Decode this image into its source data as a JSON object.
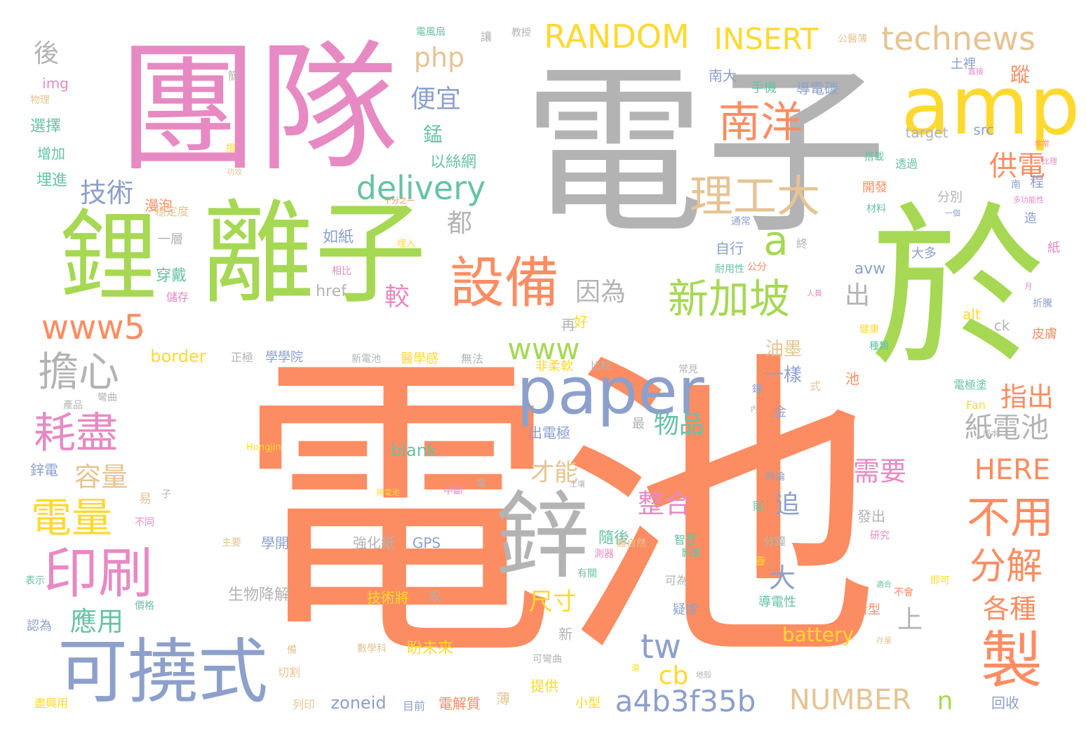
{
  "palette": {
    "background": "#ffffff",
    "orange": "#fc8d62",
    "green": "#a6d854",
    "pink": "#e78ac3",
    "blue": "#8da0cb",
    "yellow": "#ffd92f",
    "tan": "#e5c494",
    "gray": "#b3b3b3",
    "teal": "#66c2a5"
  },
  "words": {
    "w_dianchi": "電池",
    "w_dianzi": "電子",
    "w_tuandui": "團隊",
    "w_yu": "於",
    "w_lizi": "離子",
    "w_li": "鋰",
    "w_amp": "amp",
    "w_paper": "paper",
    "w_xin": "鋅",
    "w_kenaoshi": "可撓式",
    "w_shebei": "設備",
    "w_yinshua": "印刷",
    "w_zhi": "製",
    "w_xinjiapo": "新加坡",
    "w_nanyang": "南洋",
    "w_ligongda": "理工大",
    "w_www5": "www5",
    "w_haojin": "耗盡",
    "w_danxin": "擔心",
    "w_dianliang": "電量",
    "w_buyong": "不用",
    "w_fenjie": "分解",
    "w_technews": "technews",
    "w_random": "RANDOM",
    "w_insert": "INSERT",
    "w_delivery": "delivery",
    "w_www": "www",
    "w_a": "a",
    "w_a4b": "a4b3f35b",
    "w_number": "NUMBER",
    "w_tw": "tw",
    "w_here": "HERE",
    "w_zhidianchi": "紙電池",
    "w_gongdian": "供電",
    "w_jishu": "技術",
    "w_piany": "便宜",
    "w_php": "php",
    "w_rongliang": "容量",
    "w_yingyong": "應用",
    "w_zhenghe": "整合",
    "w_wupin": "物品",
    "w_zhichu": "指出",
    "w_xuyao": "需要",
    "w_gezhong": "各種",
    "w_yinwei": "因為",
    "w_hou": "後",
    "w_jiao": "較",
    "w_dou": "都",
    "w_chu": "出",
    "w_zhui": "追",
    "w_da": "大",
    "w_shang": "上",
    "w_cb": "cb",
    "w_n": "n",
    "w_chicun": "尺寸",
    "w_caineng": "才能",
    "w_battery": "battery",
    "w_zong": "蹤",
    "w_meng": "錳",
    "w_youmo": "油墨",
    "w_yiyang": "一樣",
    "w_blank": "blank",
    "w_zoneid": "zoneid",
    "w_border": "border",
    "w_href": "href",
    "w_avw": "avw",
    "w_target": "target",
    "w_src": "src",
    "w_img": "img",
    "w_alt": "alt",
    "w_ck": "ck",
    "w_gps": "GPS",
    "w_fan": "Fan",
    "w_hongjin": "Hongjin",
    "w_yisiwang": "以絲網",
    "w_rujhi": "如紙",
    "w_chuandai": "穿戴",
    "w_manpao": "漫泡",
    "w_wendingdu": "穩定度",
    "w_yiceng": "一層",
    "w_chucun": "儲存",
    "w_xuanze": "選擇",
    "w_zengjia": "增加",
    "w_maijin": "埋進",
    "w_wuli": "物理",
    "w_zhao": "摺",
    "w_gongxiao": "功效",
    "w_shifen": "十分之一",
    "w_mairu": "埋入",
    "w_xiangbi": "相比",
    "w_zai": "再",
    "w_hao": "好",
    "w_suihou": "隨後",
    "w_shuchu": "出電極",
    "w_zui": "最",
    "w_qianghua": "強化紙",
    "w_shengwu": "生物降解",
    "w_jishujiang": "技術將",
    "w_she": "設",
    "w_panweilai": "盼未來",
    "w_shuxueke": "數學科",
    "w_tigong": "提供",
    "w_xiaoxing": "小型",
    "w_dianjiezhi": "電解質",
    "w_bao": "薄",
    "w_mumian": "目前",
    "w_lieyin": "列印",
    "w_qiege": "切割",
    "w_bei": "備",
    "w_xuexueyuan": "學學院",
    "w_zhengji": "正極",
    "w_xindianchi": "新電池",
    "w_yixuegan": "醫學感",
    "w_wufa": "無法",
    "w_feirou": "非柔軟",
    "w_bijiao": "比較",
    "w_changjian": "常見",
    "w_xinzhi": "鋅電",
    "w_chanpin": "產品",
    "w_wanqu": "彎曲",
    "w_yi": "易",
    "w_zi": "子",
    "w_butong": "不同",
    "w_zhuyao": "主要",
    "w_xuekai": "學開",
    "w_biaoshi": "表示",
    "w_renwei": "認為",
    "w_jiage": "價格",
    "w_huanjingyong": "盡興用",
    "w_fenbie": "分別",
    "w_kaifa": "開發",
    "w_caiiao": "材料",
    "w_tongchang": "通常",
    "w_zixing": "自行",
    "w_naiyong": "耐用性",
    "w_gongfen": "公分",
    "w_zhong": "終",
    "w_jiankang": "健康",
    "w_renyuan": "人員",
    "w_zhonglei": "種類",
    "w_nanda": "南大",
    "w_shouji": "手機",
    "w_daodiantan": "導電碳",
    "w_tuli": "土裡",
    "w_gongyi": "公醫薄",
    "w_jiaoshou": "教授",
    "w_rang": "讓",
    "w_dianfengshan": "電風扇",
    "w_pian": "簡",
    "w_dazai": "搭載",
    "w_touguo": "透過",
    "w_cheng": "程",
    "w_nan": "南",
    "w_zao": "造",
    "w_yige": "一個",
    "w_duogongneng": "多功能性",
    "w_feichang": "非常",
    "w_bili": "比理",
    "w_zhi2": "紙",
    "w_yue": "月",
    "w_zheteng": "折騰",
    "w_pifu": "皮膚",
    "w_duo": "大多",
    "w_zhijie": "直接",
    "w_shi": "式",
    "w_chi": "池",
    "w_dianjitu": "電極塗",
    "w_chengben": "成本",
    "w_jin": "金",
    "w_lii": "鋰",
    "w_nei": "內",
    "w_wulun": "無論",
    "w_tie": "貼",
    "w_nanzi": "難自然",
    "w_zhihui": "智慧",
    "w_yingxiang": "影響",
    "w_yanjiu": "研究",
    "w_die": "疊",
    "w_fenzhong": "分鐘",
    "w_fachu": "發出",
    "w_youguan": "有關",
    "w_kewei": "可為",
    "w_yilv": "疑慮",
    "w_xinxing": "新型",
    "w_shihe": "適合",
    "w_buhui": "不會",
    "w_jike": "即可",
    "w_daodianxing": "導電性",
    "w_cunliang": "存量",
    "w_huishou": "回收",
    "w_xin2": "新",
    "w_kewanqu": "可彎曲",
    "w_dike": "地殼",
    "w_huan": "還",
    "w_tuyang": "土壤",
    "w_zhongduan": "中斷",
    "w_dian": "電",
    "w_jiangdianchi": "將電池",
    "w_ceqi": "測器"
  }
}
